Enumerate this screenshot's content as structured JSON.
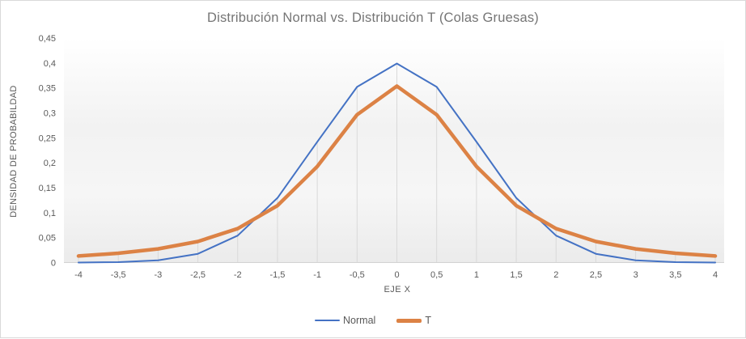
{
  "chart": {
    "title": "Distribución Normal vs. Distribución T (Colas Gruesas)",
    "x_axis_title": "EJE X",
    "y_axis_title": "DENSIDAD DE PROBABILDAD"
  },
  "chart_data": {
    "type": "line",
    "title": "Distribución Normal vs. Distribución T (Colas Gruesas)",
    "xlabel": "EJE X",
    "ylabel": "DENSIDAD DE PROBABILDAD",
    "x": [
      -4,
      -3.5,
      -3,
      -2.5,
      -2,
      -1.5,
      -1,
      -0.5,
      0,
      0.5,
      1,
      1.5,
      2,
      2.5,
      3,
      3.5,
      4
    ],
    "x_tick_labels": [
      "-4",
      "-3,5",
      "-3",
      "-2,5",
      "-2",
      "-1,5",
      "-1",
      "-0,5",
      "0",
      "0,5",
      "1",
      "1,5",
      "2",
      "2,5",
      "3",
      "3,5",
      "4"
    ],
    "y_ticks": [
      0,
      0.05,
      0.1,
      0.15,
      0.2,
      0.25,
      0.3,
      0.35,
      0.4,
      0.45
    ],
    "y_tick_labels": [
      "0",
      "0,05",
      "0,1",
      "0,15",
      "0,2",
      "0,25",
      "0,3",
      "0,35",
      "0,4",
      "0,45"
    ],
    "ylim": [
      0,
      0.45
    ],
    "grid": "vertical-drop-lines-to-axis",
    "legend_position": "bottom",
    "colors": {
      "gridline": "#D9D9D9",
      "axis_line": "#D2D2D2",
      "tick_text": "#595959",
      "title_text": "#757575"
    },
    "series": [
      {
        "name": "Normal",
        "color": "#4472C4",
        "stroke_width": 2,
        "values": [
          0.0001,
          0.0009,
          0.0044,
          0.0175,
          0.054,
          0.1295,
          0.242,
          0.3521,
          0.3989,
          0.3521,
          0.242,
          0.1295,
          0.054,
          0.0175,
          0.0044,
          0.0009,
          0.0001
        ]
      },
      {
        "name": "T",
        "color": "#DC8245",
        "stroke_width": 4.5,
        "values": [
          0.0131,
          0.0186,
          0.0274,
          0.0422,
          0.068,
          0.1141,
          0.1925,
          0.2963,
          0.3536,
          0.2963,
          0.1925,
          0.1141,
          0.068,
          0.0422,
          0.0274,
          0.0186,
          0.0131
        ]
      }
    ]
  }
}
